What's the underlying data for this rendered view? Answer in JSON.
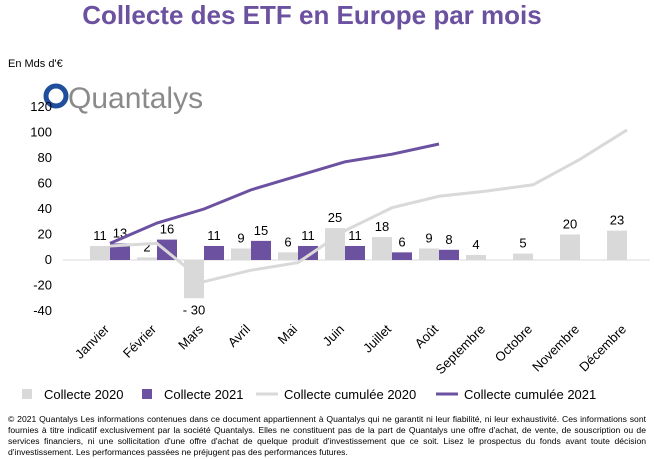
{
  "chart_data": {
    "type": "bar_line",
    "title": "Collecte des ETF en Europe par mois",
    "y_label": "En Mds d'€",
    "brand": "Quantalys",
    "categories": [
      "Janvier",
      "Février",
      "Mars",
      "Avril",
      "Mai",
      "Juin",
      "Juillet",
      "Août",
      "Septembre",
      "Octobre",
      "Novembre",
      "Décembre"
    ],
    "series": [
      {
        "name": "Collecte 2020",
        "kind": "bar",
        "color": "#d9d9d9",
        "values": [
          11,
          2,
          -30,
          9,
          6,
          25,
          18,
          9,
          4,
          5,
          20,
          23
        ],
        "value_labels": [
          "11",
          "2",
          "- 30",
          "9",
          "6",
          "25",
          "18",
          "9",
          "4",
          "5",
          "20",
          "23"
        ]
      },
      {
        "name": "Collecte 2021",
        "kind": "bar",
        "color": "#6b51a0",
        "values": [
          13,
          16,
          11,
          15,
          11,
          11,
          6,
          8,
          null,
          null,
          null,
          null
        ]
      },
      {
        "name": "Collecte cumulée 2020",
        "kind": "line",
        "color": "#d9d9d9",
        "values": [
          11,
          13,
          -17,
          -8,
          -2,
          23,
          41,
          50,
          54,
          59,
          79,
          102
        ]
      },
      {
        "name": "Collecte cumulée 2021",
        "kind": "line",
        "color": "#6b51a0",
        "values": [
          13,
          29,
          40,
          55,
          66,
          77,
          83,
          91,
          null,
          null,
          null,
          null
        ]
      }
    ],
    "ylim": [
      -40,
      120
    ],
    "yticks": [
      -40,
      -20,
      0,
      20,
      40,
      60,
      80,
      100,
      120
    ],
    "legend": "bottom",
    "footer": "© 2021 Quantalys Les informations contenues dans ce document appartiennent à Quantalys qui ne garantit ni leur fiabilité, ni leur exhaustivité. Ces informations sont fournies à titre indicatif exclusivement par la société Quantalys. Elles ne constituent pas de la part de Quantalys une offre d'achat, de vente, de souscription ou de services financiers, ni une sollicitation d'une offre d'achat de quelque produit d'investissement que ce soit. Lisez le prospectus du fonds avant toute décision d'investissement. Les performances passées ne préjugent pas des performances futures."
  }
}
